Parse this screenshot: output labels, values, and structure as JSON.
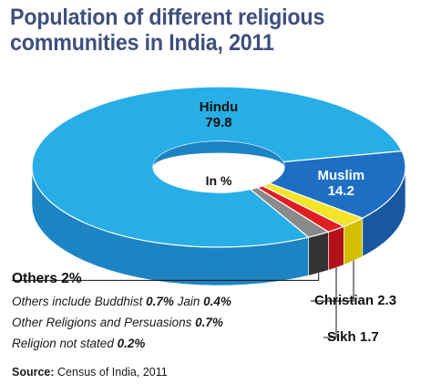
{
  "chart_data": {
    "type": "pie",
    "title_line1": "Population of different religious",
    "title_line2": "communities in India, 2011",
    "center_label": "In %",
    "slices": [
      {
        "label": "Hindu",
        "value": 79.8,
        "value_text": "79.8",
        "color": "#27aee6",
        "side_color": "#1d84c4"
      },
      {
        "label": "Muslim",
        "value": 14.2,
        "value_text": "14.2",
        "color": "#1e6fc4",
        "side_color": "#1858a0"
      },
      {
        "label": "Christian",
        "value": 2.3,
        "value_text": "2.3",
        "color": "#f4e42a",
        "side_color": "#d2c000"
      },
      {
        "label": "Sikh",
        "value": 1.7,
        "value_text": "1.7",
        "color": "#e01e24",
        "side_color": "#b3121a"
      },
      {
        "label": "Others",
        "value": 2.0,
        "value_text": "2%",
        "color": "#8a8a8a",
        "side_color": "#333333"
      }
    ],
    "others_breakdown": {
      "line1_prefix": "Others include Buddhist ",
      "buddhist": "0.7%",
      "line1_mid": " Jain ",
      "jain": "0.4%",
      "line2_prefix": "Other Religions and Persuasions ",
      "other_religions": "0.7%",
      "line3_prefix": "Religion not stated ",
      "not_stated": "0.2%"
    }
  },
  "source": {
    "label": "Source:",
    "text": " Census of India, 2011"
  }
}
